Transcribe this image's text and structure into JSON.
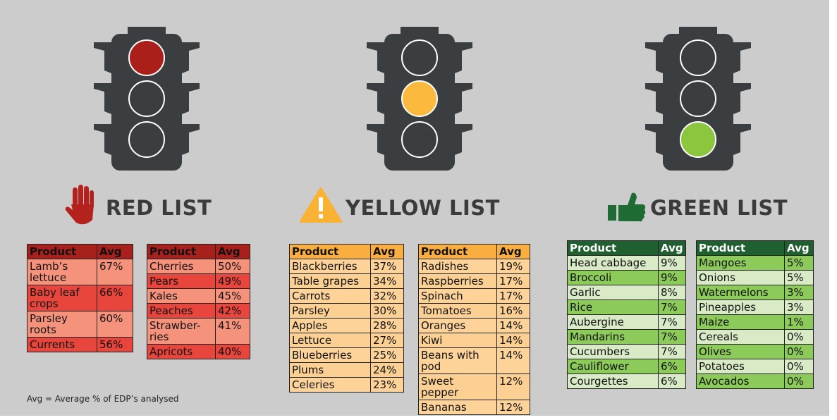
{
  "lists": [
    {
      "title": "RED LIST",
      "tables": [
        {
          "header": [
            "Product",
            "Avg"
          ],
          "rows": [
            [
              "Lamb’s lettuce",
              "67%"
            ],
            [
              "Baby leaf crops",
              "66%"
            ],
            [
              "Parsley roots",
              "60%"
            ],
            [
              "Currents",
              "56%"
            ]
          ]
        },
        {
          "header": [
            "Product",
            "Avg"
          ],
          "rows": [
            [
              "Cherries",
              "50%"
            ],
            [
              "Pears",
              "49%"
            ],
            [
              "Kales",
              "45%"
            ],
            [
              "Peaches",
              "42%"
            ],
            [
              "Strawber-ries",
              "41%"
            ],
            [
              "Apricots",
              "40%"
            ]
          ]
        }
      ]
    },
    {
      "title": "YELLOW LIST",
      "tables": [
        {
          "header": [
            "Product",
            "Avg"
          ],
          "rows": [
            [
              "Blackberries",
              "37%"
            ],
            [
              "Table grapes",
              "34%"
            ],
            [
              "Carrots",
              "32%"
            ],
            [
              "Parsley",
              "30%"
            ],
            [
              "Apples",
              "28%"
            ],
            [
              "Lettuce",
              "27%"
            ],
            [
              "Blueberries",
              "25%"
            ],
            [
              "Plums",
              "24%"
            ],
            [
              "Celeries",
              "23%"
            ]
          ]
        },
        {
          "header": [
            "Product",
            "Avg"
          ],
          "rows": [
            [
              "Radishes",
              "19%"
            ],
            [
              "Raspberries",
              "17%"
            ],
            [
              "Spinach",
              "17%"
            ],
            [
              "Tomatoes",
              "16%"
            ],
            [
              "Oranges",
              "14%"
            ],
            [
              "Kiwi",
              "14%"
            ],
            [
              "Beans with pod",
              "14%"
            ],
            [
              "Sweet pepper",
              "12%"
            ],
            [
              "Bananas",
              "12%"
            ]
          ]
        }
      ]
    },
    {
      "title": "GREEN LIST",
      "tables": [
        {
          "header": [
            "Product",
            "Avg"
          ],
          "rows": [
            [
              "Head cabbage",
              "9%"
            ],
            [
              "Broccoli",
              "9%"
            ],
            [
              "Garlic",
              "8%"
            ],
            [
              "Rice",
              "7%"
            ],
            [
              "Aubergine",
              "7%"
            ],
            [
              "Mandarins",
              "7%"
            ],
            [
              "Cucumbers",
              "7%"
            ],
            [
              "Cauliflower",
              "6%"
            ],
            [
              "Courgettes",
              "6%"
            ]
          ]
        },
        {
          "header": [
            "Product",
            "Avg"
          ],
          "rows": [
            [
              "Mangoes",
              "5%"
            ],
            [
              "Onions",
              "5%"
            ],
            [
              "Watermelons",
              "3%"
            ],
            [
              "Pineapples",
              "3%"
            ],
            [
              "Maize",
              "1%"
            ],
            [
              "Cereals",
              "0%"
            ],
            [
              "Olives",
              "0%"
            ],
            [
              "Potatoes",
              "0%"
            ],
            [
              "Avocados",
              "0%"
            ]
          ]
        }
      ]
    }
  ],
  "footnote": "Avg = Average % of EDP’s analysed"
}
